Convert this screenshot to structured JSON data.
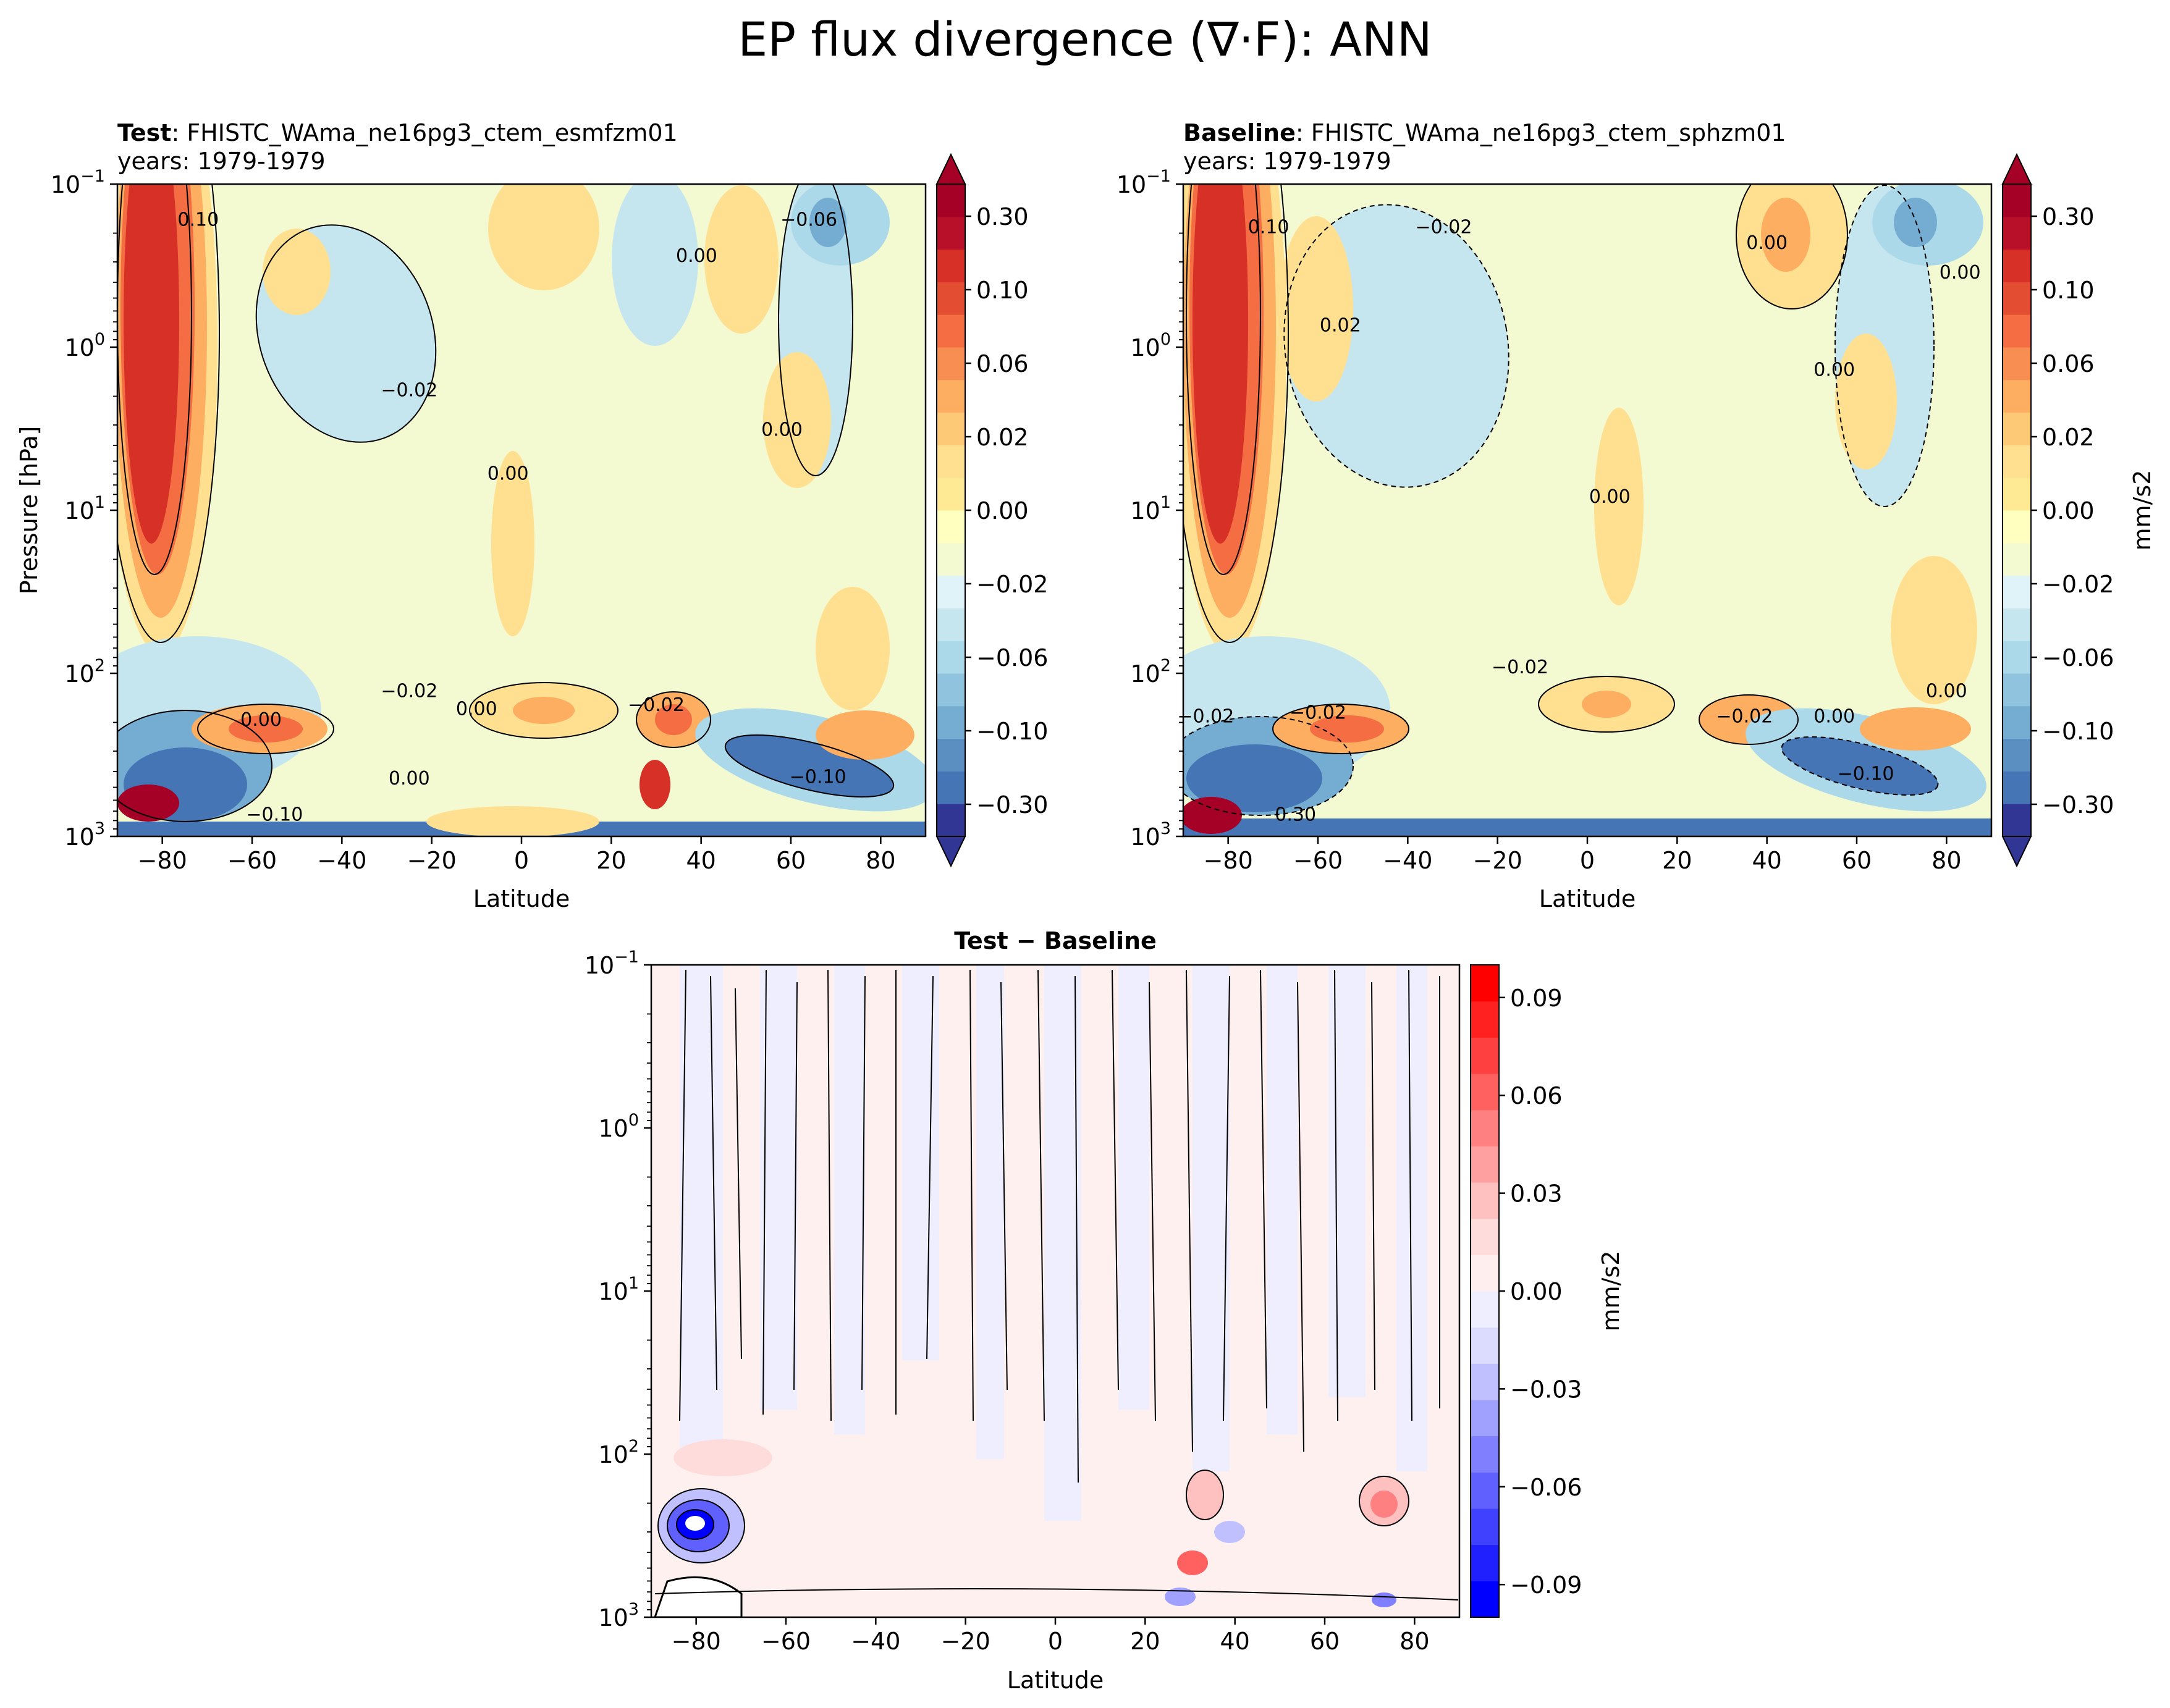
{
  "title": "EP flux divergence (∇·F): ANN",
  "panels": {
    "test": {
      "label_bold": "Test",
      "label_rest": ": FHISTC_WAma_ne16pg3_ctem_esmfzm01",
      "years": "years: 1979-1979"
    },
    "baseline": {
      "label_bold": "Baseline",
      "label_rest": ": FHISTC_WAma_ne16pg3_ctem_sphzm01",
      "years": "years: 1979-1979"
    },
    "diff": {
      "title": "Test − Baseline"
    }
  },
  "colors": {
    "main_levels": [
      "#313695",
      "#4575b4",
      "#5b8fc2",
      "#74add1",
      "#90c3dd",
      "#abd9e9",
      "#c6e6ef",
      "#e0f3f8",
      "#f3fad2",
      "#ffffbf",
      "#fee994",
      "#fee090",
      "#fdc976",
      "#fdae61",
      "#f98e52",
      "#f46d43",
      "#e34e33",
      "#d73027",
      "#b9102a",
      "#a50026"
    ],
    "diff_levels": [
      "#0000ff",
      "#2020ff",
      "#4040ff",
      "#6060ff",
      "#8080ff",
      "#a0a0ff",
      "#c0c0ff",
      "#dcdcff",
      "#eeeeff",
      "#ffeeee",
      "#ffdcdc",
      "#ffc0c0",
      "#ffa0a0",
      "#ff8080",
      "#ff6060",
      "#ff4040",
      "#ff2020",
      "#ff0000"
    ]
  },
  "chart_data": [
    {
      "type": "heatmap",
      "name": "Test",
      "xlabel": "Latitude",
      "ylabel": "Pressure [hPa]",
      "xlim": [
        -90,
        90
      ],
      "ylim": [
        1000,
        0.1
      ],
      "yscale": "log",
      "x_ticks": [
        -80,
        -60,
        -40,
        -20,
        0,
        20,
        40,
        60,
        80
      ],
      "y_ticks": [
        0.1,
        1,
        10,
        100,
        1000
      ],
      "y_tick_labels": [
        [
          "10",
          "−1"
        ],
        [
          "10",
          "0"
        ],
        [
          "10",
          "1"
        ],
        [
          "10",
          "2"
        ],
        [
          "10",
          "3"
        ]
      ],
      "contour_labels": [
        {
          "lat": -72,
          "p": 0.18,
          "text": "0.10"
        },
        {
          "lat": 39,
          "p": 0.3,
          "text": "0.00"
        },
        {
          "lat": 64,
          "p": 0.18,
          "text": "−0.06"
        },
        {
          "lat": -25,
          "p": 2.0,
          "text": "−0.02"
        },
        {
          "lat": 58,
          "p": 3.5,
          "text": "0.00"
        },
        {
          "lat": -3,
          "p": 6.5,
          "text": "0.00"
        },
        {
          "lat": -58,
          "p": 210,
          "text": "0.00"
        },
        {
          "lat": -25,
          "p": 140,
          "text": "−0.02"
        },
        {
          "lat": 30,
          "p": 170,
          "text": "−0.02"
        },
        {
          "lat": -10,
          "p": 180,
          "text": "0.00"
        },
        {
          "lat": 66,
          "p": 470,
          "text": "−0.10"
        },
        {
          "lat": -55,
          "p": 800,
          "text": "−0.10"
        },
        {
          "lat": -25,
          "p": 480,
          "text": "0.00"
        }
      ],
      "colorbar": {
        "ticks": [
          "−0.30",
          "−0.10",
          "−0.06",
          "−0.02",
          "0.00",
          "0.02",
          "0.06",
          "0.10",
          "0.30"
        ],
        "extend": "both"
      }
    },
    {
      "type": "heatmap",
      "name": "Baseline",
      "xlabel": "Latitude",
      "xlim": [
        -90,
        90
      ],
      "ylim": [
        1000,
        0.1
      ],
      "yscale": "log",
      "x_ticks": [
        -80,
        -60,
        -40,
        -20,
        0,
        20,
        40,
        60,
        80
      ],
      "y_ticks": [
        0.1,
        1,
        10,
        100,
        1000
      ],
      "y_tick_labels": [
        [
          "10",
          "−1"
        ],
        [
          "10",
          "0"
        ],
        [
          "10",
          "1"
        ],
        [
          "10",
          "2"
        ],
        [
          "10",
          "3"
        ]
      ],
      "contour_labels": [
        {
          "lat": -71,
          "p": 0.2,
          "text": "0.10"
        },
        {
          "lat": -32,
          "p": 0.2,
          "text": "−0.02"
        },
        {
          "lat": -55,
          "p": 0.8,
          "text": "0.02"
        },
        {
          "lat": 40,
          "p": 0.25,
          "text": "0.00"
        },
        {
          "lat": 83,
          "p": 0.38,
          "text": "0.00"
        },
        {
          "lat": 55,
          "p": 1.5,
          "text": "0.00"
        },
        {
          "lat": 5,
          "p": 9,
          "text": "0.00"
        },
        {
          "lat": -15,
          "p": 100,
          "text": "−0.02"
        },
        {
          "lat": 80,
          "p": 140,
          "text": "0.00"
        },
        {
          "lat": 55,
          "p": 200,
          "text": "0.00"
        },
        {
          "lat": -60,
          "p": 190,
          "text": "−0.02"
        },
        {
          "lat": -85,
          "p": 200,
          "text": "−0.02"
        },
        {
          "lat": 35,
          "p": 200,
          "text": "−0.02"
        },
        {
          "lat": -65,
          "p": 800,
          "text": "0.30"
        },
        {
          "lat": 62,
          "p": 450,
          "text": "−0.10"
        }
      ],
      "colorbar": {
        "ticks": [
          "−0.30",
          "−0.10",
          "−0.06",
          "−0.02",
          "0.00",
          "0.02",
          "0.06",
          "0.10",
          "0.30"
        ],
        "extend": "both",
        "label": "mm/s2"
      }
    },
    {
      "type": "heatmap",
      "name": "Test − Baseline",
      "xlabel": "Latitude",
      "xlim": [
        -90,
        90
      ],
      "ylim": [
        1000,
        0.1
      ],
      "yscale": "log",
      "x_ticks": [
        -80,
        -60,
        -40,
        -20,
        0,
        20,
        40,
        60,
        80
      ],
      "y_ticks": [
        0.1,
        1,
        10,
        100,
        1000
      ],
      "y_tick_labels": [
        [
          "10",
          "−1"
        ],
        [
          "10",
          "0"
        ],
        [
          "10",
          "1"
        ],
        [
          "10",
          "2"
        ],
        [
          "10",
          "3"
        ]
      ],
      "colorbar": {
        "ticks": [
          "−0.09",
          "−0.06",
          "−0.03",
          "0.00",
          "0.03",
          "0.06",
          "0.09"
        ],
        "label": "mm/s2"
      }
    }
  ]
}
